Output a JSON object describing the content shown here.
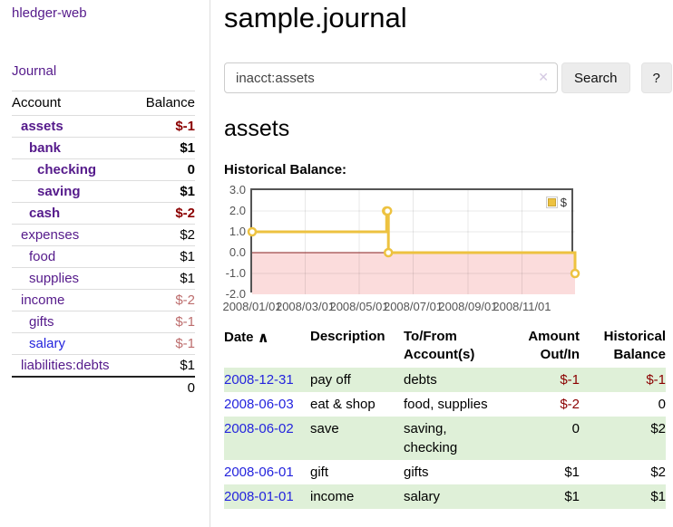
{
  "app": {
    "title": "hledger-web",
    "journal_link": "Journal"
  },
  "colors": {
    "link_purple": "#551a8b",
    "link_blue": "#2424dd",
    "negative": "#8b0000",
    "negative_muted": "#bd6d6d",
    "row_green": "#dff0d8",
    "series_yellow": "#edc240",
    "series_yellow_border": "#c9a434",
    "negative_fill": "#fbdcdc",
    "zero_line": "#871f1f",
    "chart_border": "#545454",
    "axis_text": "#545454",
    "table_border": "#dddddd",
    "button_bg": "#ececec",
    "input_border": "#cccccc",
    "clear_icon_color": "#d4c9e2"
  },
  "sidebar": {
    "header": {
      "account": "Account",
      "balance": "Balance"
    },
    "accounts": [
      {
        "name": "assets",
        "balance": "$-1",
        "depth": 0,
        "in_tree": true,
        "balance_class": "neg"
      },
      {
        "name": "bank",
        "balance": "$1",
        "depth": 1,
        "in_tree": true,
        "balance_class": ""
      },
      {
        "name": "checking",
        "balance": "0",
        "depth": 2,
        "in_tree": true,
        "balance_class": ""
      },
      {
        "name": "saving",
        "balance": "$1",
        "depth": 2,
        "in_tree": true,
        "balance_class": ""
      },
      {
        "name": "cash",
        "balance": "$-2",
        "depth": 1,
        "in_tree": true,
        "balance_class": "neg"
      },
      {
        "name": "expenses",
        "balance": "$2",
        "depth": 0,
        "in_tree": false,
        "balance_class": ""
      },
      {
        "name": "food",
        "balance": "$1",
        "depth": 1,
        "in_tree": false,
        "balance_class": ""
      },
      {
        "name": "supplies",
        "balance": "$1",
        "depth": 1,
        "in_tree": false,
        "balance_class": ""
      },
      {
        "name": "income",
        "balance": "$-2",
        "depth": 0,
        "in_tree": false,
        "balance_class": "negmuted"
      },
      {
        "name": "gifts",
        "balance": "$-1",
        "depth": 1,
        "in_tree": false,
        "balance_class": "negmuted"
      },
      {
        "name": "salary",
        "balance": "$-1",
        "depth": 1,
        "in_tree": false,
        "balance_class": "negmuted",
        "blue": true
      },
      {
        "name": "liabilities:debts",
        "balance": "$1",
        "depth": 0,
        "in_tree": false,
        "balance_class": ""
      }
    ],
    "total": "0"
  },
  "header": {
    "title": "sample.journal"
  },
  "search": {
    "value": "inacct:assets",
    "placeholder": "",
    "clear_icon": "✕",
    "button_label": "Search",
    "help_label": "?"
  },
  "account": {
    "heading": "assets",
    "chart_label": "Historical Balance:"
  },
  "chart_data": {
    "type": "line",
    "title": "Historical Balance",
    "legend_label": "$",
    "legend_position": "top-right",
    "grid": true,
    "steps": true,
    "series": [
      {
        "name": "$",
        "points": [
          [
            "2008-01-01",
            1
          ],
          [
            "2008-06-01",
            2
          ],
          [
            "2008-06-02",
            2
          ],
          [
            "2008-06-03",
            0
          ],
          [
            "2008-12-31",
            -1
          ]
        ]
      }
    ],
    "xlim": [
      "2008-01-01",
      "2008-12-31"
    ],
    "ylim": [
      -2,
      3
    ],
    "x_ticks": [
      {
        "label": "2008/01/01",
        "date": "2008-01-01"
      },
      {
        "label": "2008/03/01",
        "date": "2008-03-01"
      },
      {
        "label": "2008/05/01",
        "date": "2008-05-01"
      },
      {
        "label": "2008/07/01",
        "date": "2008-07-01"
      },
      {
        "label": "2008/09/01",
        "date": "2008-09-01"
      },
      {
        "label": "2008/11/01",
        "date": "2008-11-01"
      }
    ],
    "y_ticks": [
      {
        "label": "3.0",
        "value": 3
      },
      {
        "label": "2.0",
        "value": 2
      },
      {
        "label": "1.0",
        "value": 1
      },
      {
        "label": "0.0",
        "value": 0
      },
      {
        "label": "-1.0",
        "value": -1
      },
      {
        "label": "-2.0",
        "value": -2
      }
    ],
    "negative_region": true
  },
  "register": {
    "headers": [
      {
        "label": "Date",
        "sort_icon": "∧"
      },
      {
        "label": "Description"
      },
      {
        "label": "To/From Account(s)"
      },
      {
        "label": "Amount Out/In"
      },
      {
        "label": "Historical Balance"
      }
    ],
    "rows": [
      {
        "date": "2008-12-31",
        "description": "pay off",
        "accounts": "debts",
        "amount": "$-1",
        "amount_negative": true,
        "balance": "$-1",
        "balance_negative": true,
        "shaded": true
      },
      {
        "date": "2008-06-03",
        "description": "eat & shop",
        "accounts": "food, supplies",
        "amount": "$-2",
        "amount_negative": true,
        "balance": "0",
        "balance_negative": false,
        "shaded": false
      },
      {
        "date": "2008-06-02",
        "description": "save",
        "accounts": "saving,\nchecking",
        "amount": "0",
        "amount_negative": false,
        "balance": "$2",
        "balance_negative": false,
        "shaded": true
      },
      {
        "date": "2008-06-01",
        "description": "gift",
        "accounts": "gifts",
        "amount": "$1",
        "amount_negative": false,
        "balance": "$2",
        "balance_negative": false,
        "shaded": false
      },
      {
        "date": "2008-01-01",
        "description": "income",
        "accounts": "salary",
        "amount": "$1",
        "amount_negative": false,
        "balance": "$1",
        "balance_negative": false,
        "shaded": true
      }
    ]
  }
}
